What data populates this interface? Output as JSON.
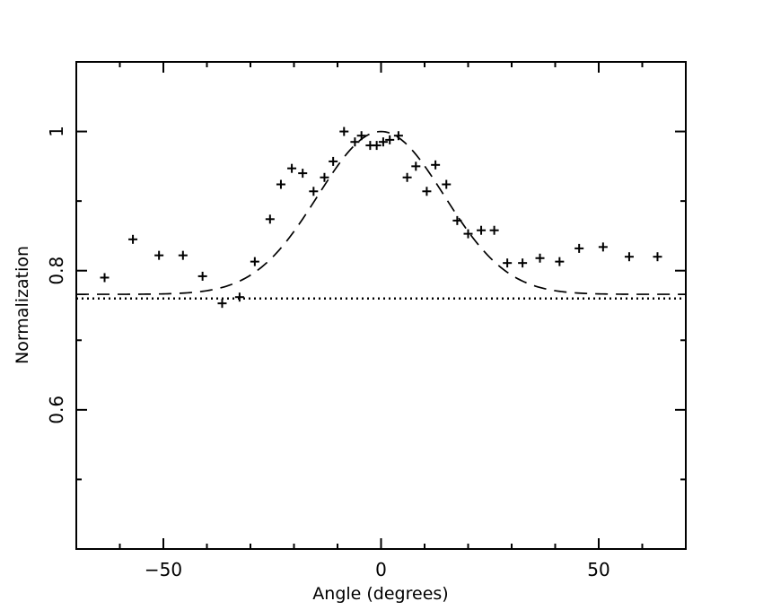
{
  "chart_data": {
    "type": "scatter",
    "title": "",
    "xlabel": "Angle (degrees)",
    "ylabel": "Normalization",
    "xlim": [
      -70,
      70
    ],
    "ylim": [
      0.4,
      1.1
    ],
    "x_ticks_major": [
      -50,
      0,
      50
    ],
    "x_ticks_minor": [
      -60,
      -40,
      -30,
      -20,
      -10,
      10,
      20,
      30,
      40,
      60
    ],
    "x_tick_labels": [
      "−50",
      "0",
      "50"
    ],
    "y_ticks_major": [
      0.6,
      0.8,
      1.0
    ],
    "y_ticks_minor": [
      0.5,
      0.7,
      0.9
    ],
    "y_tick_labels": [
      "0.6",
      "0.8",
      "1"
    ],
    "grid": false,
    "series": [
      {
        "style": "plus-markers",
        "x": [
          -63.5,
          -57,
          -51,
          -45.5,
          -41,
          -36.5,
          -32.5,
          -29,
          -25.5,
          -23,
          -20.5,
          -18,
          -15.5,
          -13,
          -11,
          -8.5,
          -6,
          -4.5,
          -2.5,
          -1,
          0.5,
          2,
          4,
          6,
          8,
          10.5,
          12.5,
          15,
          17.5,
          20,
          23,
          26,
          29,
          32.5,
          36.5,
          41,
          45.5,
          51,
          57,
          63.5
        ],
        "y": [
          0.79,
          0.845,
          0.822,
          0.822,
          0.792,
          0.753,
          0.762,
          0.813,
          0.874,
          0.924,
          0.947,
          0.94,
          0.914,
          0.934,
          0.957,
          1.0,
          0.985,
          0.994,
          0.98,
          0.98,
          0.985,
          0.988,
          0.994,
          0.934,
          0.95,
          0.914,
          0.952,
          0.924,
          0.872,
          0.853,
          0.858,
          0.858,
          0.811,
          0.811,
          0.818,
          0.813,
          0.832,
          0.834,
          0.82,
          0.82
        ]
      },
      {
        "style": "dashed-curve",
        "model": "gaussian",
        "baseline": 0.766,
        "peak": 1.0,
        "center": 0,
        "sigma": 14.5
      },
      {
        "style": "dotted-line",
        "y": 0.76
      }
    ]
  }
}
